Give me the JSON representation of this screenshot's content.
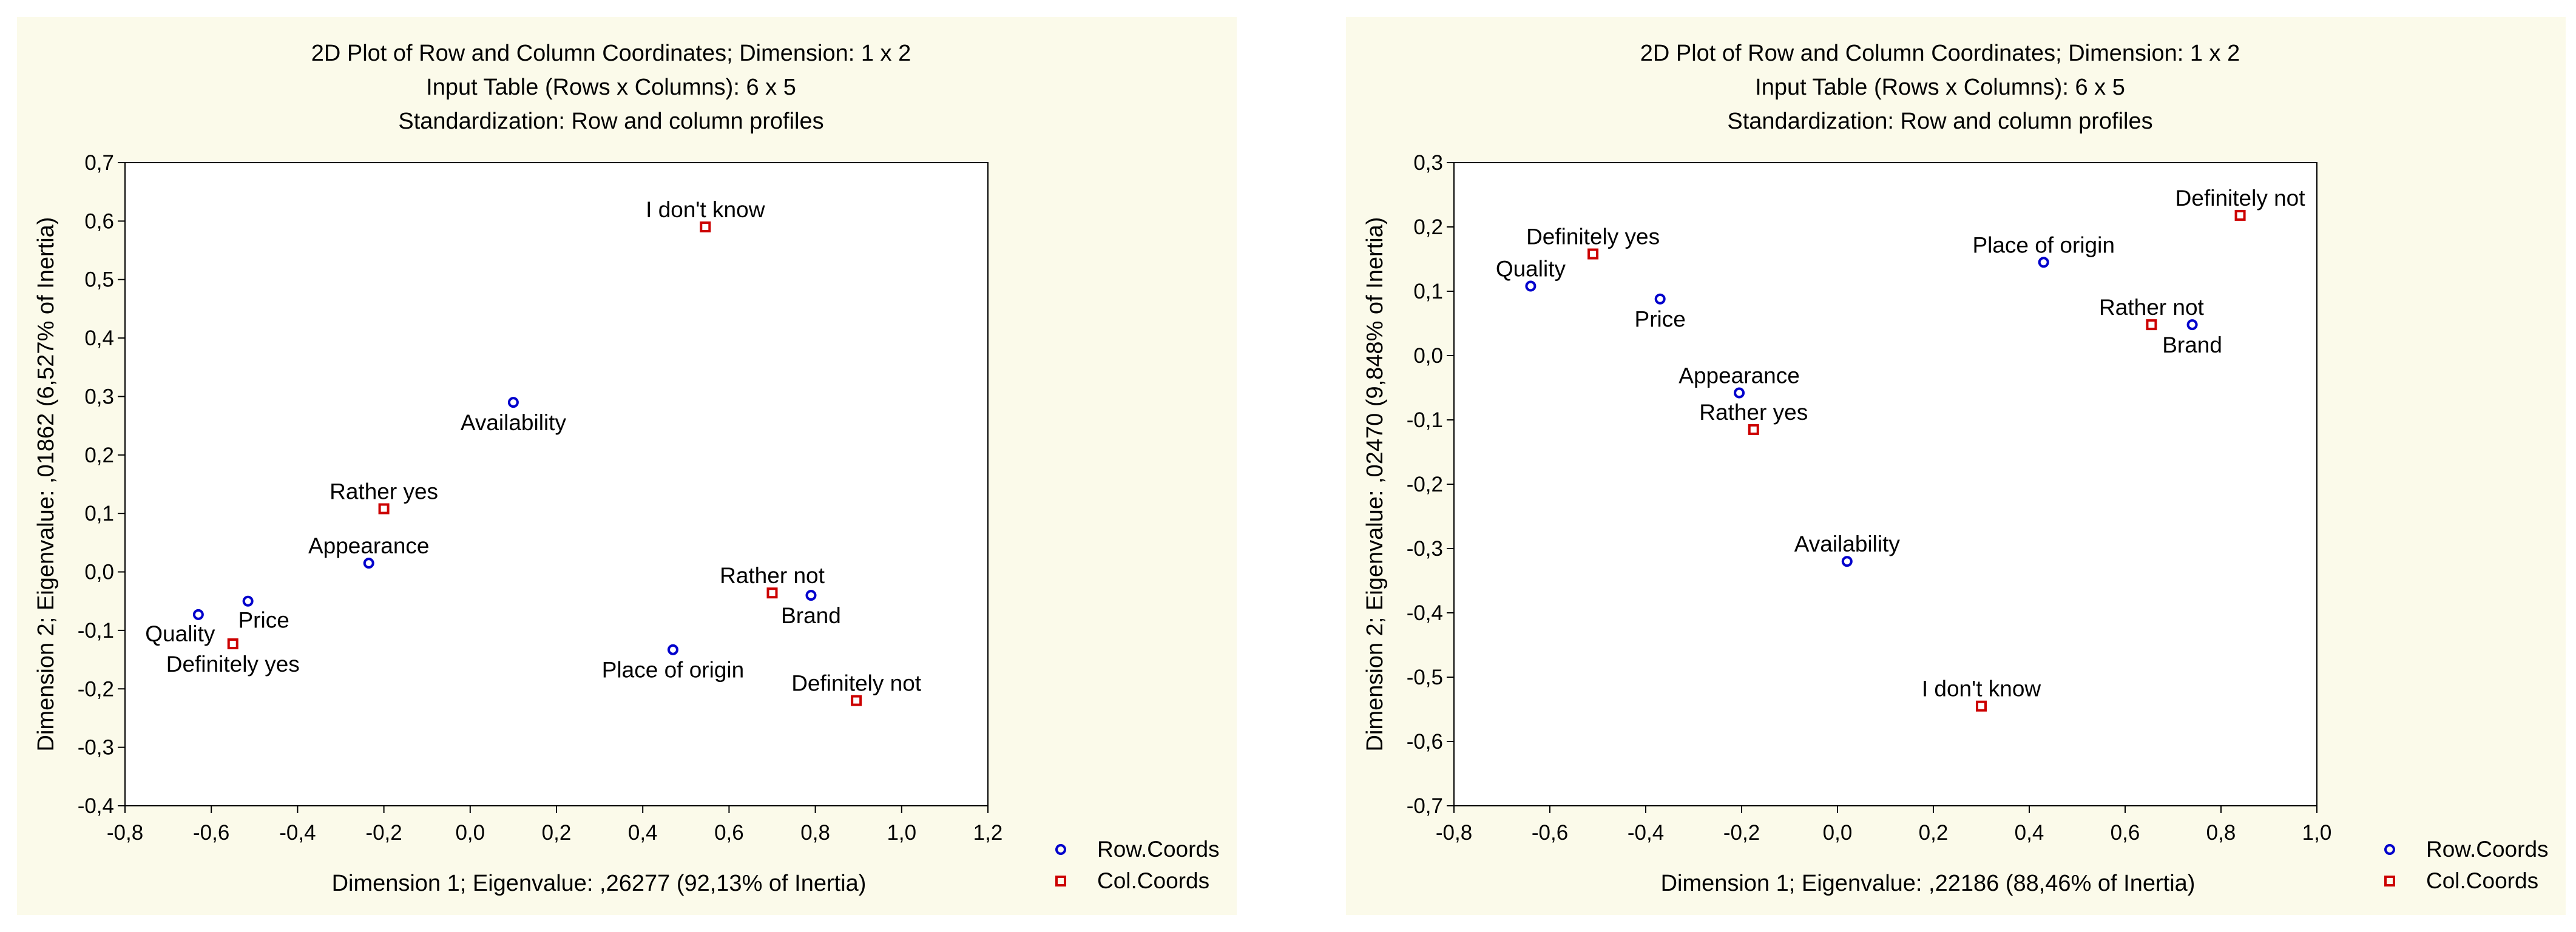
{
  "chart_data": [
    {
      "type": "scatter",
      "title_lines": [
        "2D Plot of Row and Column Coordinates; Dimension:  1 x  2",
        "Input Table (Rows x Columns): 6 x 5",
        "Standardization: Row and column profiles"
      ],
      "xlabel": "Dimension 1; Eigenvalue: ,26277 (92,13% of Inertia)",
      "ylabel": "Dimension 2; Eigenvalue: ,01862 (6,527% of Inertia)",
      "xlim": [
        -0.8,
        1.2
      ],
      "ylim": [
        -0.4,
        0.7
      ],
      "xticks": [
        -0.8,
        -0.6,
        -0.4,
        -0.2,
        0.0,
        0.2,
        0.4,
        0.6,
        0.8,
        1.0,
        1.2
      ],
      "yticks": [
        -0.4,
        -0.3,
        -0.2,
        -0.1,
        0.0,
        0.1,
        0.2,
        0.3,
        0.4,
        0.5,
        0.6,
        0.7
      ],
      "xtick_labels": [
        "-0,8",
        "-0,6",
        "-0,4",
        "-0,2",
        "0,0",
        "0,2",
        "0,4",
        "0,6",
        "0,8",
        "1,0",
        "1,2"
      ],
      "ytick_labels": [
        "-0,4",
        "-0,3",
        "-0,2",
        "-0,1",
        "0,0",
        "0,1",
        "0,2",
        "0,3",
        "0,4",
        "0,5",
        "0,6",
        "0,7"
      ],
      "legend": [
        "Row.Coords",
        "Col.Coords"
      ],
      "series": [
        {
          "name": "Row.Coords",
          "color": "#0000cc",
          "points": [
            {
              "label": "Quality",
              "x": -0.63,
              "y": -0.073,
              "pos": "below-left"
            },
            {
              "label": "Price",
              "x": -0.515,
              "y": -0.05,
              "pos": "below-right"
            },
            {
              "label": "Appearance",
              "x": -0.235,
              "y": 0.015,
              "pos": "above"
            },
            {
              "label": "Availability",
              "x": 0.1,
              "y": 0.29,
              "pos": "below"
            },
            {
              "label": "Place of origin",
              "x": 0.47,
              "y": -0.133,
              "pos": "below"
            },
            {
              "label": "Brand",
              "x": 0.79,
              "y": -0.04,
              "pos": "below"
            }
          ]
        },
        {
          "name": "Col.Coords",
          "color": "#cc0000",
          "points": [
            {
              "label": "Definitely yes",
              "x": -0.55,
              "y": -0.123,
              "pos": "below"
            },
            {
              "label": "Rather yes",
              "x": -0.2,
              "y": 0.108,
              "pos": "above"
            },
            {
              "label": "I don't know",
              "x": 0.545,
              "y": 0.59,
              "pos": "above"
            },
            {
              "label": "Rather not",
              "x": 0.7,
              "y": -0.036,
              "pos": "above"
            },
            {
              "label": "Definitely not",
              "x": 0.895,
              "y": -0.22,
              "pos": "above"
            }
          ]
        }
      ]
    },
    {
      "type": "scatter",
      "title_lines": [
        "2D Plot of Row and Column Coordinates; Dimension:  1 x  2",
        "Input Table (Rows x Columns): 6 x 5",
        "Standardization: Row and column profiles"
      ],
      "xlabel": "Dimension 1; Eigenvalue: ,22186 (88,46% of Inertia)",
      "ylabel": "Dimension 2; Eigenvalue: ,02470 (9,848% of Inertia)",
      "xlim": [
        -0.8,
        1.0
      ],
      "ylim": [
        -0.7,
        0.3
      ],
      "xticks": [
        -0.8,
        -0.6,
        -0.4,
        -0.2,
        0.0,
        0.2,
        0.4,
        0.6,
        0.8,
        1.0
      ],
      "yticks": [
        -0.7,
        -0.6,
        -0.5,
        -0.4,
        -0.3,
        -0.2,
        -0.1,
        0.0,
        0.1,
        0.2,
        0.3
      ],
      "xtick_labels": [
        "-0,8",
        "-0,6",
        "-0,4",
        "-0,2",
        "0,0",
        "0,2",
        "0,4",
        "0,6",
        "0,8",
        "1,0"
      ],
      "ytick_labels": [
        "-0,7",
        "-0,6",
        "-0,5",
        "-0,4",
        "-0,3",
        "-0,2",
        "-0,1",
        "0,0",
        "0,1",
        "0,2",
        "0,3"
      ],
      "legend": [
        "Row.Coords",
        "Col.Coords"
      ],
      "series": [
        {
          "name": "Row.Coords",
          "color": "#0000cc",
          "points": [
            {
              "label": "Quality",
              "x": -0.64,
              "y": 0.108,
              "pos": "above"
            },
            {
              "label": "Price",
              "x": -0.37,
              "y": 0.088,
              "pos": "below"
            },
            {
              "label": "Appearance",
              "x": -0.205,
              "y": -0.058,
              "pos": "above"
            },
            {
              "label": "Availability",
              "x": 0.02,
              "y": -0.32,
              "pos": "above"
            },
            {
              "label": "Place of origin",
              "x": 0.43,
              "y": 0.145,
              "pos": "above"
            },
            {
              "label": "Brand",
              "x": 0.74,
              "y": 0.048,
              "pos": "below"
            }
          ]
        },
        {
          "name": "Col.Coords",
          "color": "#cc0000",
          "points": [
            {
              "label": "Definitely yes",
              "x": -0.51,
              "y": 0.158,
              "pos": "above"
            },
            {
              "label": "Rather yes",
              "x": -0.175,
              "y": -0.115,
              "pos": "above"
            },
            {
              "label": "I don't know",
              "x": 0.3,
              "y": -0.545,
              "pos": "above"
            },
            {
              "label": "Rather not",
              "x": 0.655,
              "y": 0.048,
              "pos": "above"
            },
            {
              "label": "Definitely not",
              "x": 0.84,
              "y": 0.218,
              "pos": "above"
            }
          ]
        }
      ]
    }
  ]
}
